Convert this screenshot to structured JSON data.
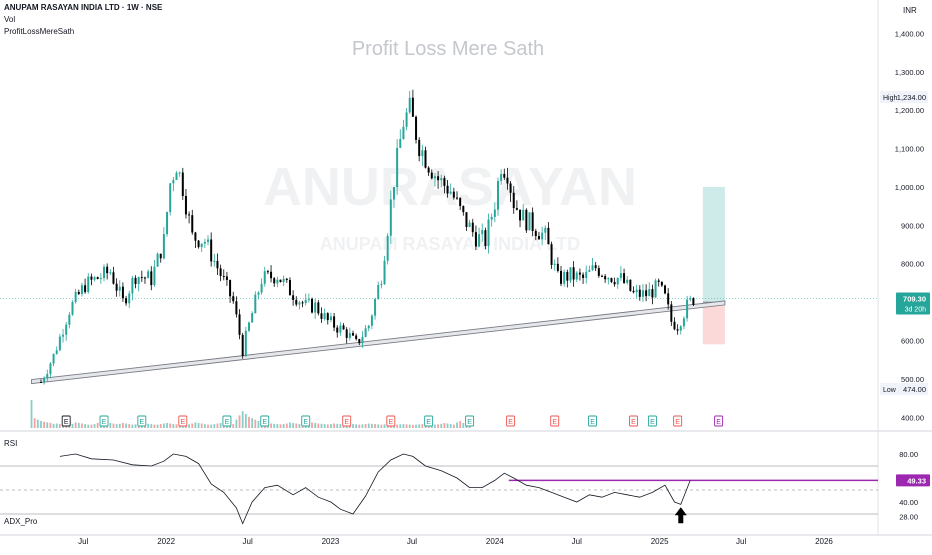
{
  "header": {
    "symbol_line": "ANUPAM RASAYAN INDIA LTD · 1W · NSE",
    "vol_label": "Vol",
    "indicator_label": "ProfitLossMereSath",
    "currency": "INR"
  },
  "watermark": {
    "title": "Profit Loss Mere Sath",
    "big_text": "ANURASAYAN",
    "small_text": "ANUPAM RASAYAN INDIA LTD"
  },
  "chart_data": [
    {
      "type": "candlestick",
      "title": "Profit Loss Mere Sath",
      "ylim": [
        380,
        1440
      ],
      "y_ticks": [
        "1,400.00",
        "1,300.00",
        "1,200.00",
        "1,100.00",
        "1,000.00",
        "900.00",
        "800.00",
        "700.00",
        "600.00",
        "500.00",
        "400.00"
      ],
      "y_tick_values": [
        1400,
        1300,
        1200,
        1100,
        1000,
        900,
        800,
        700,
        600,
        500,
        400
      ],
      "x_ticks": [
        "Jul",
        "2022",
        "Jul",
        "2023",
        "Jul",
        "2024",
        "Jul",
        "2025",
        "Jul",
        "2026"
      ],
      "x_tick_dates": [
        "2021-07-01",
        "2022-01-01",
        "2022-07-01",
        "2023-01-01",
        "2023-07-01",
        "2024-01-01",
        "2024-07-01",
        "2025-01-01",
        "2025-07-01",
        "2026-01-01"
      ],
      "x_range": [
        "2020-12-28",
        "2026-05-01"
      ],
      "colors": {
        "up": "#26a69a",
        "down": "#000000",
        "axis_text": "#131722"
      },
      "high": {
        "label": "High",
        "value": "1,234.00"
      },
      "low": {
        "label": "Low",
        "value": "474.00"
      },
      "last_price": {
        "value": "709.30",
        "countdown": "3d 20h",
        "color": "#26a69a"
      },
      "close_path": [
        [
          "2021-03-29",
          492
        ],
        [
          "2021-04-26",
          560
        ],
        [
          "2021-05-31",
          680
        ],
        [
          "2021-07-05",
          745
        ],
        [
          "2021-08-30",
          780
        ],
        [
          "2021-09-27",
          700
        ],
        [
          "2021-10-25",
          770
        ],
        [
          "2021-11-29",
          760
        ],
        [
          "2021-12-27",
          860
        ],
        [
          "2022-01-10",
          1010
        ],
        [
          "2022-01-24",
          1060
        ],
        [
          "2022-02-07",
          1000
        ],
        [
          "2022-02-28",
          870
        ],
        [
          "2022-03-28",
          860
        ],
        [
          "2022-04-25",
          790
        ],
        [
          "2022-05-30",
          700
        ],
        [
          "2022-06-20",
          575
        ],
        [
          "2022-07-04",
          640
        ],
        [
          "2022-08-01",
          760
        ],
        [
          "2022-09-05",
          770
        ],
        [
          "2022-10-03",
          730
        ],
        [
          "2022-11-07",
          690
        ],
        [
          "2022-11-28",
          690
        ],
        [
          "2022-12-26",
          650
        ],
        [
          "2023-02-06",
          620
        ],
        [
          "2023-02-27",
          590
        ],
        [
          "2023-03-27",
          640
        ],
        [
          "2023-04-24",
          770
        ],
        [
          "2023-05-22",
          1020
        ],
        [
          "2023-06-12",
          1170
        ],
        [
          "2023-06-26",
          1200
        ],
        [
          "2023-07-17",
          1110
        ],
        [
          "2023-08-07",
          1060
        ],
        [
          "2023-08-28",
          1020
        ],
        [
          "2023-09-25",
          990
        ],
        [
          "2023-10-23",
          920
        ],
        [
          "2023-11-20",
          870
        ],
        [
          "2023-12-11",
          860
        ],
        [
          "2024-01-01",
          960
        ],
        [
          "2024-01-15",
          1060
        ],
        [
          "2024-01-29",
          1040
        ],
        [
          "2024-02-12",
          960
        ],
        [
          "2024-03-04",
          920
        ],
        [
          "2024-03-25",
          900
        ],
        [
          "2024-04-22",
          870
        ],
        [
          "2024-05-20",
          760
        ],
        [
          "2024-06-17",
          770
        ],
        [
          "2024-07-15",
          760
        ],
        [
          "2024-08-12",
          790
        ],
        [
          "2024-09-09",
          770
        ],
        [
          "2024-10-07",
          760
        ],
        [
          "2024-11-04",
          720
        ],
        [
          "2024-12-02",
          720
        ],
        [
          "2024-12-30",
          740
        ],
        [
          "2025-01-13",
          710
        ],
        [
          "2025-01-27",
          650
        ],
        [
          "2025-02-10",
          640
        ],
        [
          "2025-03-03",
          690
        ],
        [
          "2025-03-17",
          709
        ]
      ],
      "volume": {
        "label": "Vol",
        "max": 100,
        "values": [
          100,
          35,
          30,
          25,
          22,
          20,
          18,
          15,
          16,
          14,
          12,
          12,
          14,
          15,
          20,
          18,
          16,
          14,
          12,
          12,
          14,
          18,
          16,
          20,
          22,
          18,
          16,
          14,
          15,
          18,
          16,
          14,
          12,
          13,
          12,
          12,
          13,
          15,
          14,
          12,
          12,
          14,
          16,
          18,
          16,
          14,
          13,
          12,
          11,
          12,
          13,
          16,
          20,
          18,
          16,
          14,
          12,
          12,
          14,
          16,
          18,
          16,
          14,
          13,
          14,
          30,
          45,
          60,
          50,
          40,
          35,
          30,
          25,
          22,
          20,
          18,
          16,
          15,
          14,
          13,
          14,
          16,
          20,
          18,
          16,
          14,
          13,
          12,
          14,
          20,
          18,
          16,
          15,
          14,
          13,
          14,
          16,
          15,
          14,
          13,
          14,
          16,
          14,
          13,
          12,
          13,
          14,
          16,
          15,
          14,
          13,
          12,
          13,
          14,
          13,
          12,
          12,
          13,
          14,
          13,
          12,
          11,
          12,
          13,
          14,
          15,
          16,
          14,
          12,
          13,
          15,
          18,
          16,
          14,
          12,
          20,
          25,
          18,
          15,
          14
        ]
      },
      "events": [
        {
          "date": "2021-05-24",
          "label": "E",
          "color": "#131722"
        },
        {
          "date": "2021-08-16",
          "label": "E",
          "color": "#26a69a"
        },
        {
          "date": "2021-11-08",
          "label": "E",
          "color": "#26a69a"
        },
        {
          "date": "2022-02-07",
          "label": "E",
          "color": "#ef5350"
        },
        {
          "date": "2022-05-16",
          "label": "E",
          "color": "#26a69a"
        },
        {
          "date": "2022-08-08",
          "label": "E",
          "color": "#26a69a"
        },
        {
          "date": "2022-11-07",
          "label": "E",
          "color": "#26a69a"
        },
        {
          "date": "2023-02-06",
          "label": "E",
          "color": "#ef5350"
        },
        {
          "date": "2023-05-15",
          "label": "E",
          "color": "#ef5350"
        },
        {
          "date": "2023-08-07",
          "label": "E",
          "color": "#26a69a"
        },
        {
          "date": "2023-11-06",
          "label": "E",
          "color": "#26a69a"
        },
        {
          "date": "2024-02-05",
          "label": "E",
          "color": "#ef5350"
        },
        {
          "date": "2024-05-13",
          "label": "E",
          "color": "#ef5350"
        },
        {
          "date": "2024-08-05",
          "label": "E",
          "color": "#26a69a"
        },
        {
          "date": "2024-11-04",
          "label": "E",
          "color": "#ef5350"
        },
        {
          "date": "2024-12-16",
          "label": "E",
          "color": "#26a69a"
        },
        {
          "date": "2025-02-10",
          "label": "E",
          "color": "#ef5350"
        },
        {
          "date": "2025-05-12",
          "label": "E",
          "color": "#9c27b0"
        }
      ],
      "trendline": {
        "start": [
          "2021-03-08",
          493
        ],
        "end": [
          "2025-05-26",
          698
        ],
        "color": "#787b86"
      },
      "position": {
        "start": "2025-04-07",
        "end": "2025-05-26",
        "entry": 700,
        "target": 1000,
        "stop": 590,
        "profit_color": "#26a69a",
        "loss_color": "#ef5350"
      }
    },
    {
      "type": "line",
      "title": "RSI",
      "ylim": [
        15,
        95
      ],
      "y_ticks": [
        "80.00",
        "40.00",
        "28.00"
      ],
      "y_tick_values": [
        80,
        40,
        28
      ],
      "levels": [
        70,
        50,
        30
      ],
      "current": {
        "value": "49.33",
        "color": "#9c27b0"
      },
      "highlight_line": {
        "start": "2024-02-01",
        "end": "2026-05-01",
        "value": 58,
        "color": "#9c27b0"
      },
      "annotation": {
        "type": "arrow-up",
        "date": "2025-02-17",
        "value": 24
      },
      "series": [
        [
          "2021-05-10",
          78
        ],
        [
          "2021-06-14",
          80
        ],
        [
          "2021-07-19",
          76
        ],
        [
          "2021-09-06",
          75
        ],
        [
          "2021-10-18",
          71
        ],
        [
          "2021-11-29",
          70
        ],
        [
          "2021-12-27",
          74
        ],
        [
          "2022-01-17",
          80
        ],
        [
          "2022-02-14",
          78
        ],
        [
          "2022-03-14",
          72
        ],
        [
          "2022-04-11",
          55
        ],
        [
          "2022-05-09",
          48
        ],
        [
          "2022-06-06",
          35
        ],
        [
          "2022-06-20",
          22
        ],
        [
          "2022-07-11",
          40
        ],
        [
          "2022-08-08",
          52
        ],
        [
          "2022-09-05",
          54
        ],
        [
          "2022-10-10",
          46
        ],
        [
          "2022-11-07",
          52
        ],
        [
          "2022-12-05",
          44
        ],
        [
          "2023-01-02",
          40
        ],
        [
          "2023-01-23",
          34
        ],
        [
          "2023-02-20",
          30
        ],
        [
          "2023-03-20",
          45
        ],
        [
          "2023-04-17",
          65
        ],
        [
          "2023-05-15",
          75
        ],
        [
          "2023-06-12",
          80
        ],
        [
          "2023-07-03",
          78
        ],
        [
          "2023-07-31",
          70
        ],
        [
          "2023-09-04",
          66
        ],
        [
          "2023-10-09",
          60
        ],
        [
          "2023-11-06",
          52
        ],
        [
          "2023-12-04",
          52
        ],
        [
          "2024-01-01",
          58
        ],
        [
          "2024-01-22",
          64
        ],
        [
          "2024-02-12",
          60
        ],
        [
          "2024-03-11",
          54
        ],
        [
          "2024-04-08",
          52
        ],
        [
          "2024-05-06",
          48
        ],
        [
          "2024-06-03",
          44
        ],
        [
          "2024-07-01",
          40
        ],
        [
          "2024-07-29",
          46
        ],
        [
          "2024-08-26",
          44
        ],
        [
          "2024-09-23",
          48
        ],
        [
          "2024-10-21",
          46
        ],
        [
          "2024-11-18",
          44
        ],
        [
          "2024-12-16",
          48
        ],
        [
          "2025-01-13",
          54
        ],
        [
          "2025-02-03",
          40
        ],
        [
          "2025-02-17",
          38
        ],
        [
          "2025-03-10",
          58
        ]
      ]
    },
    {
      "type": "line",
      "title": "ADX_Pro",
      "series": []
    }
  ]
}
